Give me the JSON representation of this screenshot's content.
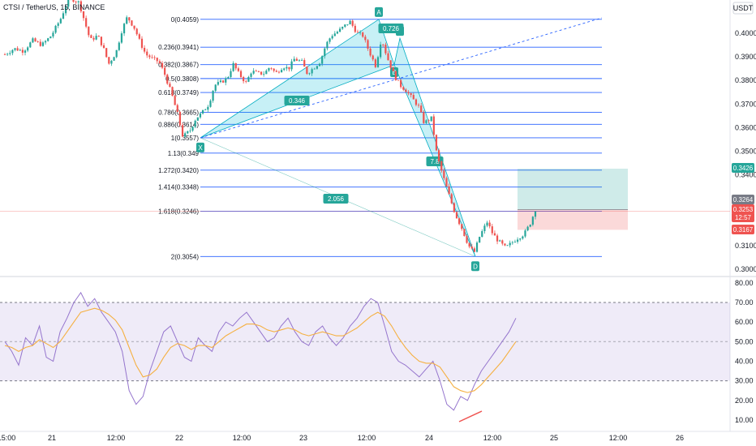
{
  "header": {
    "symbol_title": "CTSI / TetherUS, 15, BINANCE",
    "currency_button": "USDT"
  },
  "chart_data": [
    {
      "type": "candlestick",
      "symbol": "CTSI / TetherUS",
      "interval": "15",
      "exchange": "BINANCE",
      "y_axis": {
        "ticks": [
          "0.4000",
          "0.3900",
          "0.3800",
          "0.3700",
          "0.3600",
          "0.3500",
          "0.3400",
          "0.3100",
          "0.3000"
        ],
        "ylim": [
          0.2995,
          0.41
        ]
      },
      "x_axis": {
        "ticks": [
          "15:00",
          "21",
          "12:00",
          "22",
          "12:00",
          "23",
          "12:00",
          "24",
          "12:00",
          "25",
          "12:00",
          "26"
        ]
      },
      "price_tags": [
        {
          "value": "0.3426",
          "color": "#26a69a"
        },
        {
          "value": "0.3264",
          "color": "#787b86"
        },
        {
          "value": "0.3253",
          "color": "#ef5350"
        },
        {
          "value": "12:57",
          "color": "#ef5350"
        },
        {
          "value": "0.3167",
          "color": "#ef5350"
        }
      ],
      "fib_levels": [
        {
          "label": "0(0.4059)",
          "value": 0.4059
        },
        {
          "label": "0.236(0.3941)",
          "value": 0.3941
        },
        {
          "label": "0.382(0.3867)",
          "value": 0.3867
        },
        {
          "label": "0.5(0.3808)",
          "value": 0.3808
        },
        {
          "label": "0.618(0.3749)",
          "value": 0.3749
        },
        {
          "label": "0.786(0.3665)",
          "value": 0.3665
        },
        {
          "label": "0.886(0.3614)",
          "value": 0.3614
        },
        {
          "label": "1(0.3557)",
          "value": 0.3557
        },
        {
          "label": "1.13(0.349",
          "value": 0.3492
        },
        {
          "label": "1.272(0.3420)",
          "value": 0.342
        },
        {
          "label": "1.414(0.3348)",
          "value": 0.3348
        },
        {
          "label": "1.618(0.3246)",
          "value": 0.3246
        },
        {
          "label": "2(0.3054)",
          "value": 0.3054
        }
      ],
      "harmonic_pattern": {
        "points": [
          {
            "label": "X",
            "value": 0.3557
          },
          {
            "label": "A",
            "value": 0.4059
          },
          {
            "label": "B",
            "value": 0.3866
          },
          {
            "label": "C",
            "value": 0.3979
          },
          {
            "label": "D",
            "value": 0.3054
          }
        ],
        "ratios": [
          "0.346",
          "0.726",
          "7.8",
          "2.056"
        ]
      },
      "position": {
        "target": 0.3426,
        "entry": 0.3253,
        "stop": 0.3167
      },
      "close_path": [
        [
          0,
          0.391
        ],
        [
          0.5,
          0.3935
        ],
        [
          1,
          0.3925
        ],
        [
          1.5,
          0.397
        ],
        [
          2,
          0.395
        ],
        [
          2.5,
          0.399
        ],
        [
          3,
          0.406
        ],
        [
          3.3,
          0.412
        ],
        [
          3.5,
          0.415
        ],
        [
          4,
          0.413
        ],
        [
          4.3,
          0.405
        ],
        [
          4.6,
          0.397
        ],
        [
          5,
          0.399
        ],
        [
          5.3,
          0.394
        ],
        [
          5.6,
          0.387
        ],
        [
          6,
          0.392
        ],
        [
          6.3,
          0.401
        ],
        [
          6.6,
          0.407
        ],
        [
          7,
          0.402
        ],
        [
          7.3,
          0.396
        ],
        [
          7.6,
          0.391
        ],
        [
          8,
          0.389
        ],
        [
          8.3,
          0.388
        ],
        [
          8.6,
          0.383
        ],
        [
          9,
          0.374
        ],
        [
          9.3,
          0.366
        ],
        [
          9.6,
          0.356
        ],
        [
          10,
          0.359
        ],
        [
          10.3,
          0.364
        ],
        [
          10.6,
          0.366
        ],
        [
          11,
          0.37
        ],
        [
          11.3,
          0.378
        ],
        [
          11.6,
          0.379
        ],
        [
          12,
          0.381
        ],
        [
          12.3,
          0.387
        ],
        [
          12.6,
          0.383
        ],
        [
          13,
          0.379
        ],
        [
          13.3,
          0.384
        ],
        [
          13.6,
          0.383
        ],
        [
          14,
          0.383
        ],
        [
          14.3,
          0.386
        ],
        [
          14.6,
          0.383
        ],
        [
          15,
          0.386
        ],
        [
          15.3,
          0.385
        ],
        [
          15.6,
          0.389
        ],
        [
          16,
          0.388
        ],
        [
          16.3,
          0.383
        ],
        [
          16.6,
          0.385
        ],
        [
          17,
          0.388
        ],
        [
          17.3,
          0.395
        ],
        [
          17.6,
          0.399
        ],
        [
          18,
          0.401
        ],
        [
          18.3,
          0.403
        ],
        [
          18.6,
          0.405
        ],
        [
          19,
          0.4
        ],
        [
          19.3,
          0.399
        ],
        [
          19.6,
          0.393
        ],
        [
          20,
          0.386
        ],
        [
          20.3,
          0.398
        ],
        [
          20.6,
          0.39
        ],
        [
          21,
          0.382
        ],
        [
          21.3,
          0.378
        ],
        [
          21.6,
          0.376
        ],
        [
          22,
          0.372
        ],
        [
          22.3,
          0.369
        ],
        [
          22.6,
          0.362
        ],
        [
          23,
          0.364
        ],
        [
          23.3,
          0.348
        ],
        [
          23.6,
          0.34
        ],
        [
          24,
          0.33
        ],
        [
          24.3,
          0.323
        ],
        [
          24.6,
          0.318
        ],
        [
          25,
          0.31
        ],
        [
          25.3,
          0.307
        ],
        [
          25.6,
          0.314
        ],
        [
          26,
          0.32
        ],
        [
          26.3,
          0.315
        ],
        [
          26.6,
          0.312
        ],
        [
          27,
          0.309
        ],
        [
          27.3,
          0.311
        ],
        [
          27.6,
          0.313
        ],
        [
          28,
          0.315
        ],
        [
          28.3,
          0.319
        ],
        [
          28.6,
          0.3253
        ]
      ]
    },
    {
      "type": "line",
      "indicator": "RSI",
      "y_axis": {
        "ticks": [
          "80.00",
          "70.00",
          "60.00",
          "50.00",
          "40.00",
          "30.00",
          "20.00",
          "10.00"
        ],
        "ylim": [
          5,
          82
        ],
        "band": [
          30,
          70
        ]
      },
      "series": [
        {
          "color": "#9575cd",
          "values": [
            50,
            45,
            38,
            52,
            48,
            58,
            42,
            40,
            55,
            62,
            70,
            75,
            68,
            72,
            65,
            60,
            55,
            45,
            25,
            18,
            22,
            35,
            45,
            55,
            58,
            50,
            42,
            40,
            52,
            48,
            45,
            55,
            60,
            58,
            62,
            65,
            60,
            55,
            50,
            52,
            58,
            62,
            55,
            50,
            48,
            55,
            58,
            52,
            48,
            52,
            58,
            62,
            68,
            72,
            70,
            58,
            45,
            40,
            38,
            35,
            32,
            36,
            40,
            30,
            18,
            15,
            22,
            20,
            28,
            35,
            40,
            45,
            50,
            55,
            62
          ]
        },
        {
          "color": "#f5b041",
          "values": [
            48,
            47,
            45,
            47,
            48,
            51,
            49,
            47,
            50,
            55,
            60,
            65,
            66,
            67,
            66,
            64,
            61,
            56,
            47,
            38,
            32,
            33,
            36,
            42,
            47,
            49,
            48,
            46,
            48,
            48,
            47,
            50,
            53,
            55,
            57,
            59,
            59,
            58,
            56,
            55,
            56,
            57,
            56,
            54,
            53,
            54,
            55,
            54,
            53,
            53,
            55,
            57,
            60,
            63,
            65,
            63,
            58,
            52,
            47,
            43,
            40,
            39,
            39,
            37,
            32,
            27,
            25,
            24,
            25,
            28,
            32,
            36,
            40,
            45,
            50
          ]
        }
      ]
    }
  ]
}
